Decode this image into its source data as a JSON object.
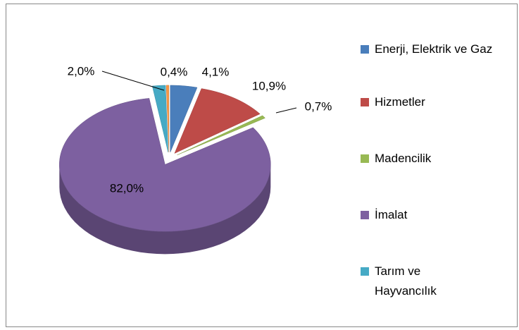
{
  "chart_data": {
    "type": "pie",
    "three_d": true,
    "exploded": true,
    "categories": [
      "Enerji, Elektrik ve Gaz",
      "Hizmetler",
      "Madencilik",
      "İmalat",
      "Tarım ve Hayvancılık",
      null
    ],
    "values": [
      4.1,
      10.9,
      0.7,
      82.0,
      2.0,
      0.4
    ],
    "value_labels": [
      "4,1%",
      "10,9%",
      "0,7%",
      "82,0%",
      "2,0%",
      "0,4%"
    ],
    "colors": [
      "#4a7ebb",
      "#be4b48",
      "#98b954",
      "#7d60a0",
      "#46aac5",
      "#f79646"
    ],
    "legend": "right"
  }
}
